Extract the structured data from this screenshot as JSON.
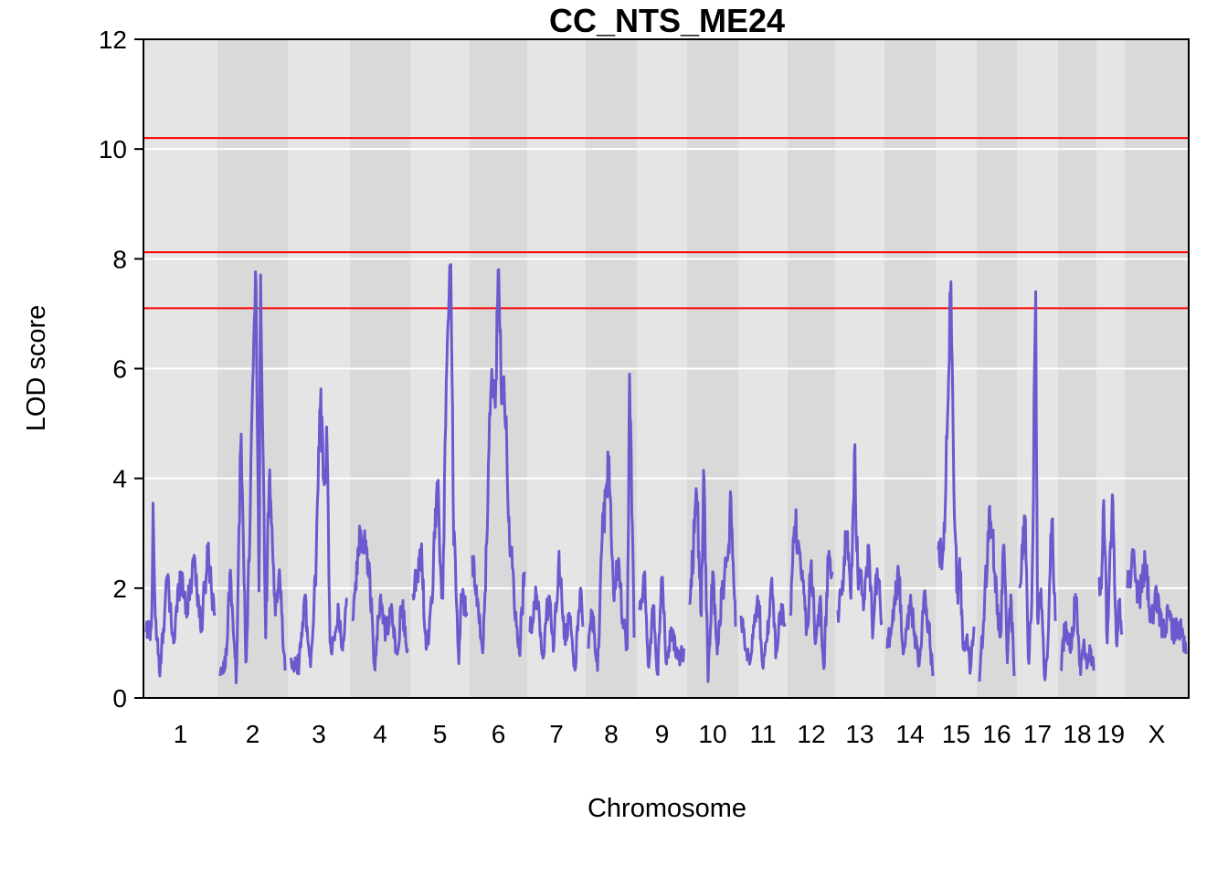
{
  "chart_data": {
    "type": "line",
    "title": "CC_NTS_ME24",
    "xlabel": "Chromosome",
    "ylabel": "LOD score",
    "ylim": [
      0,
      12
    ],
    "yticks": [
      "0",
      "2",
      "4",
      "6",
      "8",
      "10",
      "12"
    ],
    "grid": true,
    "colors": {
      "line": "#6a5acd",
      "threshold": "#ff0000",
      "band_light": "#e5e5e5",
      "band_dark": "#d9d9d9",
      "gridline": "#ffffff"
    },
    "thresholds": [
      10.2,
      8.12,
      7.1
    ],
    "chromosomes": [
      {
        "label": "1",
        "profile": [
          [
            0,
            1.2
          ],
          [
            0.08,
            1.3
          ],
          [
            0.1,
            3.55
          ],
          [
            0.13,
            1.5
          ],
          [
            0.2,
            0.4
          ],
          [
            0.3,
            2.2
          ],
          [
            0.4,
            1.0
          ],
          [
            0.5,
            2.3
          ],
          [
            0.6,
            1.6
          ],
          [
            0.7,
            2.6
          ],
          [
            0.8,
            1.2
          ],
          [
            0.9,
            2.7
          ],
          [
            1,
            1.5
          ]
        ]
      },
      {
        "label": "2",
        "profile": [
          [
            0,
            0.4
          ],
          [
            0.1,
            0.8
          ],
          [
            0.15,
            2.3
          ],
          [
            0.25,
            0.3
          ],
          [
            0.32,
            4.8
          ],
          [
            0.4,
            0.5
          ],
          [
            0.55,
            7.9
          ],
          [
            0.6,
            1.5
          ],
          [
            0.62,
            7.95
          ],
          [
            0.7,
            1.0
          ],
          [
            0.76,
            4.25
          ],
          [
            0.85,
            1.5
          ],
          [
            0.92,
            2.2
          ],
          [
            1,
            0.5
          ]
        ]
      },
      {
        "label": "3",
        "profile": [
          [
            0,
            0.7
          ],
          [
            0.15,
            0.6
          ],
          [
            0.25,
            1.9
          ],
          [
            0.35,
            0.5
          ],
          [
            0.45,
            2.5
          ],
          [
            0.52,
            5.45
          ],
          [
            0.6,
            3.8
          ],
          [
            0.64,
            5.05
          ],
          [
            0.7,
            0.8
          ],
          [
            0.85,
            1.6
          ],
          [
            0.9,
            0.9
          ],
          [
            1,
            1.8
          ]
        ]
      },
      {
        "label": "4",
        "profile": [
          [
            0,
            1.4
          ],
          [
            0.15,
            3.1
          ],
          [
            0.3,
            2.5
          ],
          [
            0.4,
            0.5
          ],
          [
            0.5,
            1.8
          ],
          [
            0.6,
            1.2
          ],
          [
            0.7,
            1.6
          ],
          [
            0.8,
            0.8
          ],
          [
            0.9,
            1.7
          ],
          [
            1,
            0.9
          ]
        ]
      },
      {
        "label": "5",
        "profile": [
          [
            0,
            1.9
          ],
          [
            0.15,
            2.65
          ],
          [
            0.25,
            0.9
          ],
          [
            0.35,
            1.7
          ],
          [
            0.45,
            4.0
          ],
          [
            0.55,
            1.6
          ],
          [
            0.6,
            4.95
          ],
          [
            0.7,
            8.1
          ],
          [
            0.75,
            3.3
          ],
          [
            0.85,
            0.6
          ],
          [
            0.9,
            1.8
          ],
          [
            1,
            1.5
          ]
        ]
      },
      {
        "label": "6",
        "profile": [
          [
            0,
            2.6
          ],
          [
            0.1,
            1.8
          ],
          [
            0.2,
            0.8
          ],
          [
            0.3,
            3.6
          ],
          [
            0.35,
            5.5
          ],
          [
            0.45,
            5.75
          ],
          [
            0.5,
            8.05
          ],
          [
            0.55,
            5.8
          ],
          [
            0.62,
            5.4
          ],
          [
            0.7,
            3.35
          ],
          [
            0.8,
            1.8
          ],
          [
            0.9,
            0.8
          ],
          [
            1,
            2.3
          ]
        ]
      },
      {
        "label": "7",
        "profile": [
          [
            0,
            1.2
          ],
          [
            0.12,
            1.9
          ],
          [
            0.25,
            0.7
          ],
          [
            0.35,
            1.9
          ],
          [
            0.45,
            0.9
          ],
          [
            0.55,
            2.7
          ],
          [
            0.65,
            1.0
          ],
          [
            0.75,
            1.5
          ],
          [
            0.85,
            0.5
          ],
          [
            0.95,
            2.0
          ],
          [
            1,
            1.3
          ]
        ]
      },
      {
        "label": "8",
        "profile": [
          [
            0,
            0.9
          ],
          [
            0.08,
            1.6
          ],
          [
            0.2,
            0.5
          ],
          [
            0.3,
            2.9
          ],
          [
            0.4,
            3.9
          ],
          [
            0.45,
            4.4
          ],
          [
            0.55,
            1.9
          ],
          [
            0.65,
            2.5
          ],
          [
            0.75,
            1.4
          ],
          [
            0.85,
            0.9
          ],
          [
            0.9,
            5.9
          ],
          [
            1,
            1.1
          ]
        ]
      },
      {
        "label": "9",
        "profile": [
          [
            0,
            1.6
          ],
          [
            0.1,
            2.3
          ],
          [
            0.2,
            0.5
          ],
          [
            0.3,
            1.7
          ],
          [
            0.4,
            0.4
          ],
          [
            0.5,
            2.2
          ],
          [
            0.6,
            0.6
          ],
          [
            0.7,
            1.3
          ],
          [
            0.85,
            0.7
          ],
          [
            1,
            0.9
          ]
        ]
      },
      {
        "label": "10",
        "profile": [
          [
            0,
            1.7
          ],
          [
            0.15,
            3.7
          ],
          [
            0.25,
            1.5
          ],
          [
            0.3,
            4.15
          ],
          [
            0.4,
            0.3
          ],
          [
            0.5,
            2.3
          ],
          [
            0.6,
            0.8
          ],
          [
            0.7,
            1.9
          ],
          [
            0.85,
            2.8
          ],
          [
            0.9,
            3.65
          ],
          [
            1,
            1.3
          ]
        ]
      },
      {
        "label": "11",
        "profile": [
          [
            0,
            1.5
          ],
          [
            0.1,
            0.9
          ],
          [
            0.2,
            0.6
          ],
          [
            0.3,
            1.3
          ],
          [
            0.4,
            1.8
          ],
          [
            0.5,
            0.5
          ],
          [
            0.6,
            1.1
          ],
          [
            0.7,
            2.2
          ],
          [
            0.8,
            0.8
          ],
          [
            0.9,
            1.6
          ],
          [
            1,
            1.3
          ]
        ]
      },
      {
        "label": "12",
        "profile": [
          [
            0,
            1.5
          ],
          [
            0.1,
            3.2
          ],
          [
            0.2,
            2.8
          ],
          [
            0.3,
            2.1
          ],
          [
            0.4,
            1.2
          ],
          [
            0.5,
            2.5
          ],
          [
            0.6,
            0.9
          ],
          [
            0.7,
            1.8
          ],
          [
            0.8,
            0.5
          ],
          [
            0.9,
            2.5
          ],
          [
            1,
            2.3
          ]
        ]
      },
      {
        "label": "13",
        "profile": [
          [
            0,
            1.6
          ],
          [
            0.1,
            2.1
          ],
          [
            0.2,
            2.95
          ],
          [
            0.3,
            1.8
          ],
          [
            0.38,
            4.6
          ],
          [
            0.45,
            2.3
          ],
          [
            0.6,
            1.8
          ],
          [
            0.7,
            2.8
          ],
          [
            0.8,
            1.2
          ],
          [
            0.9,
            2.4
          ],
          [
            1,
            1.4
          ]
        ]
      },
      {
        "label": "14",
        "profile": [
          [
            0,
            0.9
          ],
          [
            0.1,
            1.3
          ],
          [
            0.25,
            2.3
          ],
          [
            0.35,
            0.8
          ],
          [
            0.5,
            1.7
          ],
          [
            0.6,
            1.2
          ],
          [
            0.7,
            0.6
          ],
          [
            0.8,
            1.8
          ],
          [
            0.9,
            1.4
          ],
          [
            1,
            0.4
          ]
        ]
      },
      {
        "label": "15",
        "profile": [
          [
            0,
            2.7
          ],
          [
            0.15,
            2.7
          ],
          [
            0.25,
            4.9
          ],
          [
            0.35,
            7.8
          ],
          [
            0.45,
            3.3
          ],
          [
            0.55,
            1.7
          ],
          [
            0.6,
            2.6
          ],
          [
            0.7,
            0.8
          ],
          [
            0.8,
            1.2
          ],
          [
            0.9,
            0.5
          ],
          [
            1,
            1.3
          ]
        ]
      },
      {
        "label": "16",
        "profile": [
          [
            0,
            0.3
          ],
          [
            0.15,
            1.8
          ],
          [
            0.3,
            3.55
          ],
          [
            0.45,
            2.2
          ],
          [
            0.6,
            1.0
          ],
          [
            0.7,
            2.9
          ],
          [
            0.8,
            0.6
          ],
          [
            0.9,
            1.9
          ],
          [
            1,
            0.4
          ]
        ]
      },
      {
        "label": "17",
        "profile": [
          [
            0,
            2.0
          ],
          [
            0.15,
            3.35
          ],
          [
            0.25,
            0.5
          ],
          [
            0.35,
            2.1
          ],
          [
            0.45,
            7.6
          ],
          [
            0.5,
            1.5
          ],
          [
            0.6,
            2.0
          ],
          [
            0.7,
            0.3
          ],
          [
            0.8,
            1.1
          ],
          [
            0.9,
            3.3
          ],
          [
            1,
            1.4
          ]
        ]
      },
      {
        "label": "18",
        "profile": [
          [
            0,
            0.5
          ],
          [
            0.15,
            1.4
          ],
          [
            0.3,
            0.8
          ],
          [
            0.45,
            1.9
          ],
          [
            0.6,
            0.4
          ],
          [
            0.7,
            1.1
          ],
          [
            0.8,
            0.5
          ],
          [
            0.9,
            0.9
          ],
          [
            1,
            0.5
          ]
        ]
      },
      {
        "label": "19",
        "profile": [
          [
            0,
            2.2
          ],
          [
            0.1,
            2.0
          ],
          [
            0.2,
            3.6
          ],
          [
            0.35,
            1.0
          ],
          [
            0.45,
            2.3
          ],
          [
            0.6,
            3.6
          ],
          [
            0.75,
            1.0
          ],
          [
            0.9,
            1.8
          ],
          [
            1,
            1.2
          ]
        ]
      },
      {
        "label": "X",
        "profile": [
          [
            0,
            2.0
          ],
          [
            0.1,
            2.5
          ],
          [
            0.2,
            1.8
          ],
          [
            0.3,
            2.5
          ],
          [
            0.4,
            1.4
          ],
          [
            0.5,
            1.8
          ],
          [
            0.6,
            1.2
          ],
          [
            0.7,
            1.5
          ],
          [
            0.8,
            1.2
          ],
          [
            0.9,
            1.3
          ],
          [
            1,
            0.8
          ]
        ]
      }
    ]
  }
}
